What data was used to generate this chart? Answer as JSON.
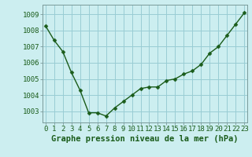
{
  "hours": [
    0,
    1,
    2,
    3,
    4,
    5,
    6,
    7,
    8,
    9,
    10,
    11,
    12,
    13,
    14,
    15,
    16,
    17,
    18,
    19,
    20,
    21,
    22,
    23
  ],
  "pressure": [
    1008.3,
    1007.4,
    1006.7,
    1005.4,
    1004.3,
    1002.9,
    1002.9,
    1002.7,
    1003.2,
    1003.6,
    1004.0,
    1004.4,
    1004.5,
    1004.5,
    1004.9,
    1005.0,
    1005.3,
    1005.5,
    1005.9,
    1006.6,
    1007.0,
    1007.7,
    1008.4,
    1009.1
  ],
  "line_color": "#1a5c1a",
  "marker": "D",
  "marker_size": 2.5,
  "background_color": "#cceef0",
  "grid_color": "#99ccd4",
  "ylabel_ticks": [
    1003,
    1004,
    1005,
    1006,
    1007,
    1008,
    1009
  ],
  "ylim": [
    1002.3,
    1009.6
  ],
  "xlabel": "Graphe pression niveau de la mer (hPa)",
  "tick_label_color": "#1a5c1a",
  "xlabel_color": "#1a5c1a",
  "xlabel_fontsize": 7.5,
  "tick_fontsize": 6.5,
  "line_width": 1.0,
  "xlim_left": -0.3,
  "xlim_right": 23.3
}
